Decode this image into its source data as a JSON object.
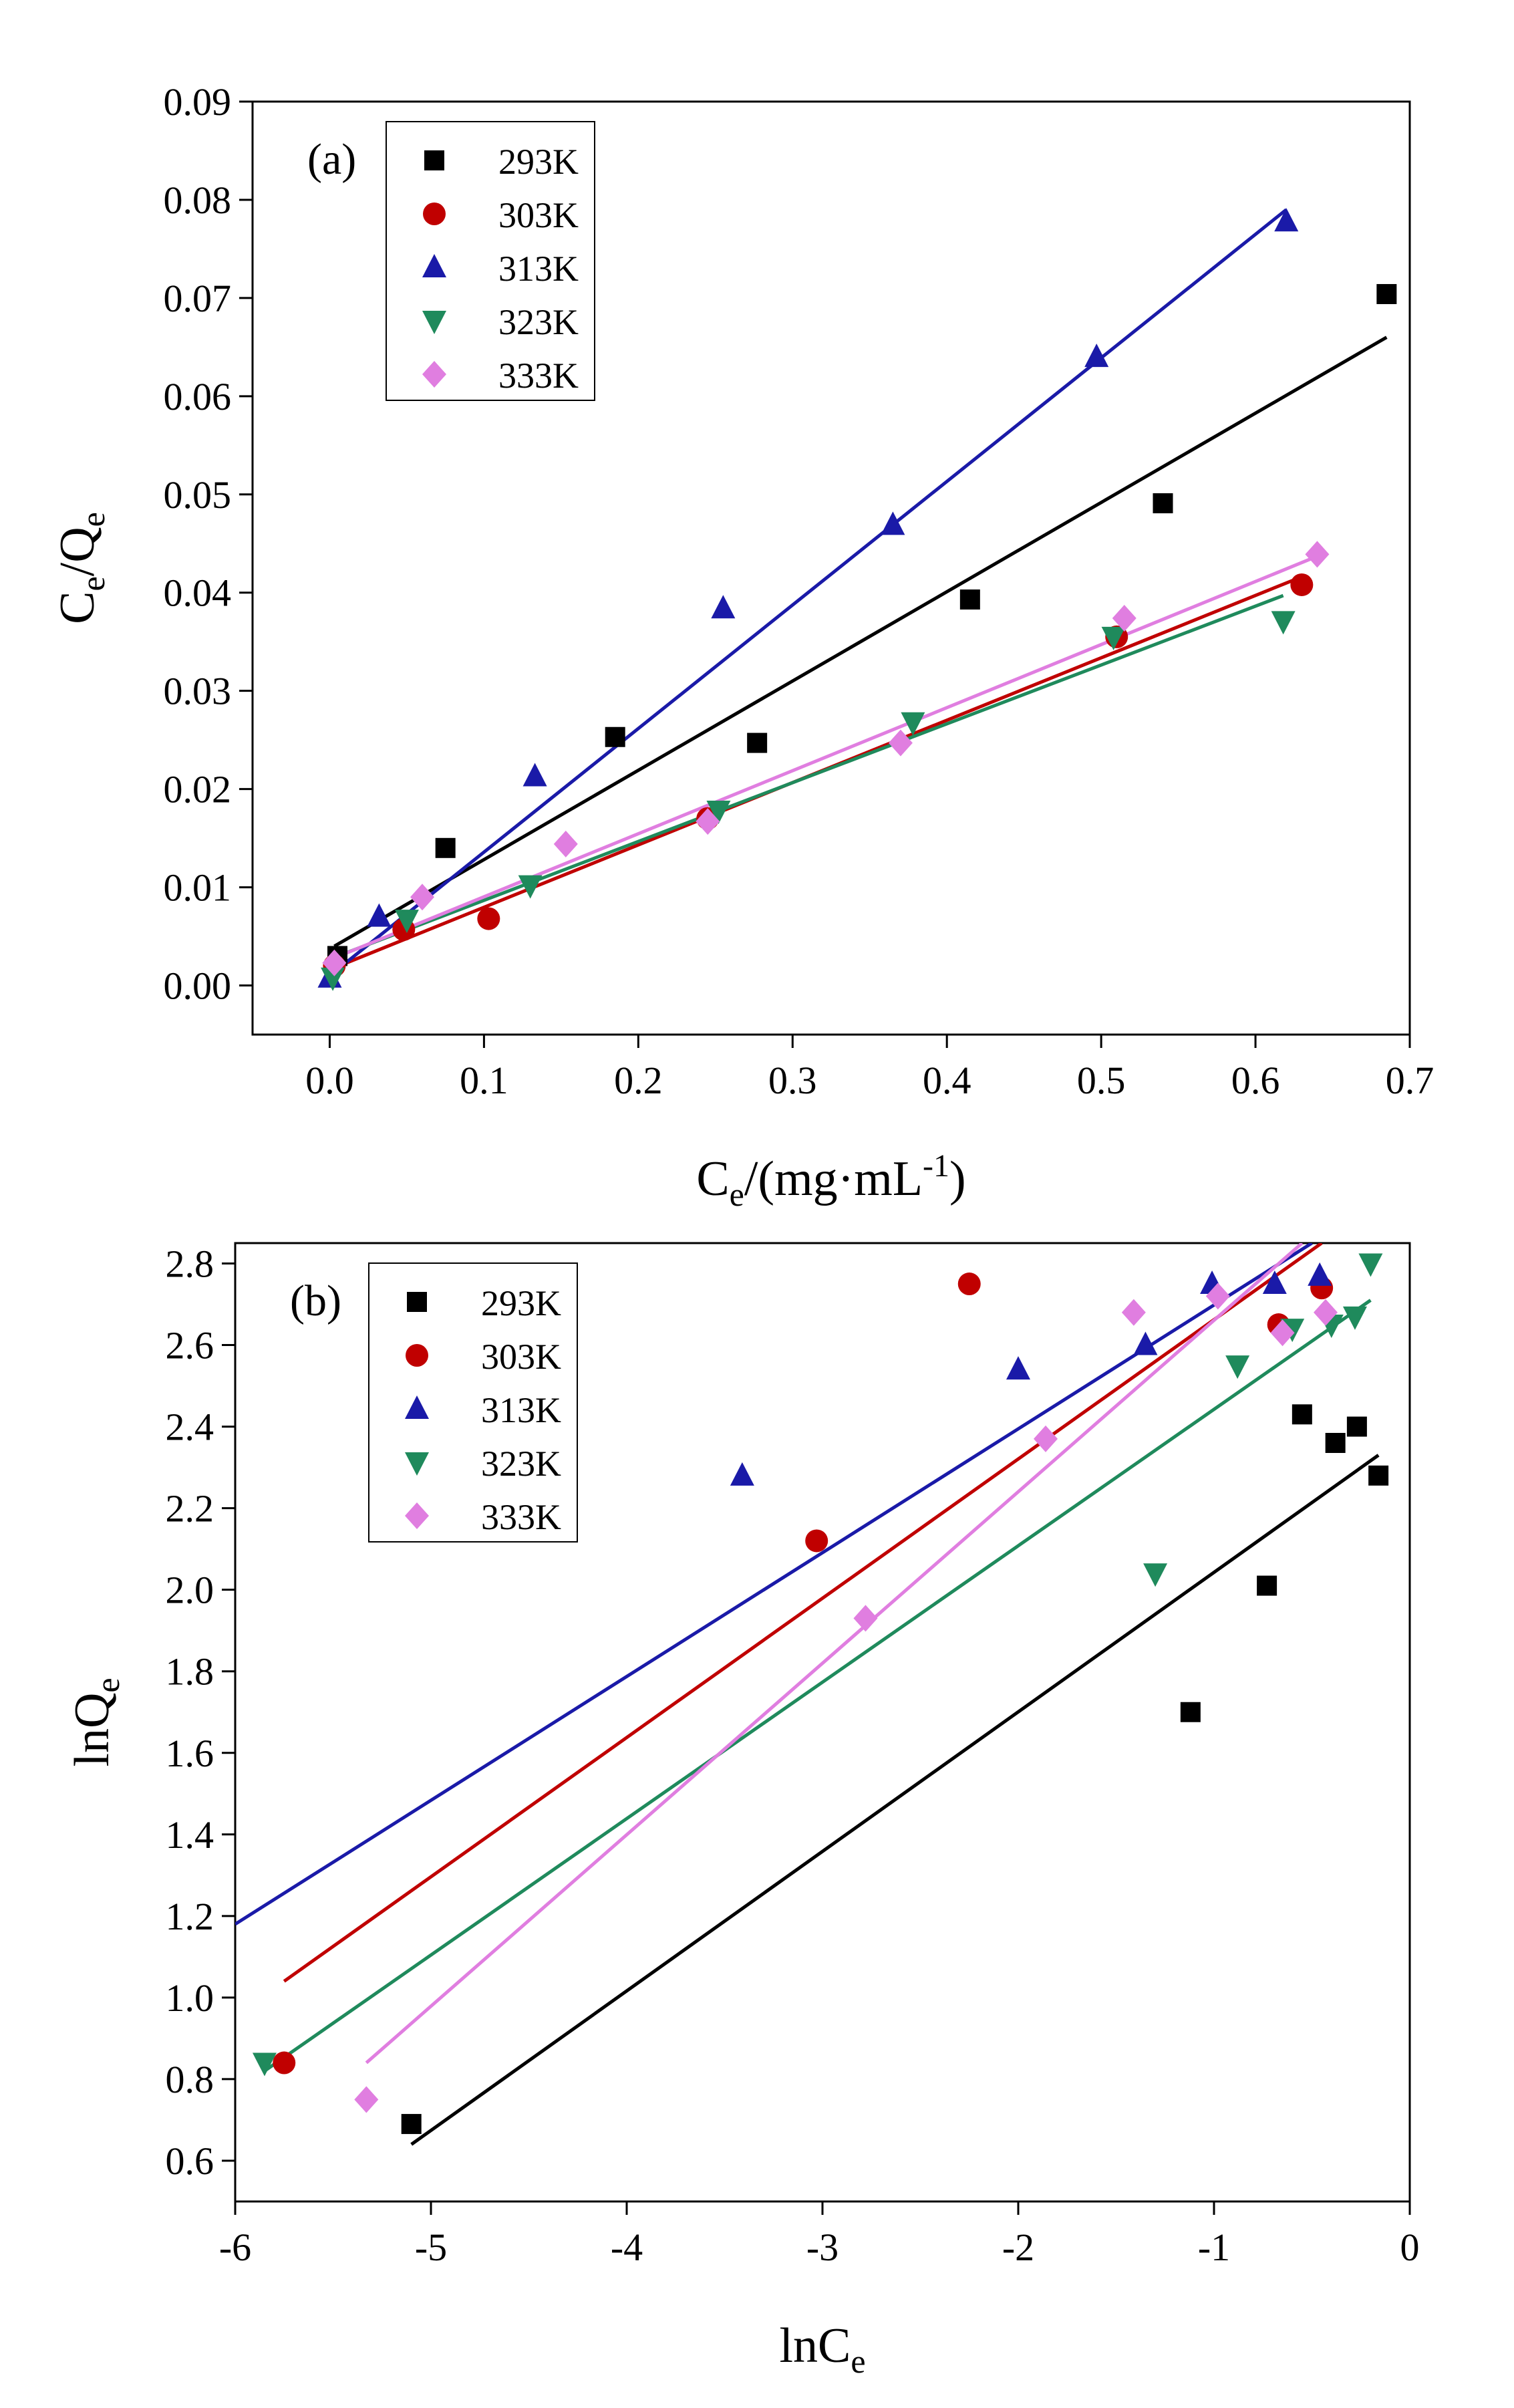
{
  "series_styles": [
    {
      "name": "293K",
      "color": "#000000",
      "marker": "square"
    },
    {
      "name": "303K",
      "color": "#c00000",
      "marker": "circle"
    },
    {
      "name": "313K",
      "color": "#1a1aa8",
      "marker": "triangle-up"
    },
    {
      "name": "323K",
      "color": "#1f8a5c",
      "marker": "triangle-down"
    },
    {
      "name": "333K",
      "color": "#e07ee0",
      "marker": "diamond"
    }
  ],
  "chart_data": [
    {
      "type": "scatter",
      "panel_label": "(a)",
      "xlabel": {
        "main": "C",
        "sub": "e",
        "rest": "/(mg·mL",
        "sup": "-1",
        "end": ")"
      },
      "ylabel": {
        "a": "C",
        "a_sub": "e",
        "b": "/Q",
        "b_sub": "e"
      },
      "xlim": [
        -0.05,
        0.7
      ],
      "ylim": [
        -0.005,
        0.09
      ],
      "xticks": [
        0.0,
        0.1,
        0.2,
        0.3,
        0.4,
        0.5,
        0.6,
        0.7
      ],
      "xtick_labels": [
        "0.0",
        "0.1",
        "0.2",
        "0.3",
        "0.4",
        "0.5",
        "0.6",
        "0.7"
      ],
      "yticks": [
        0.0,
        0.01,
        0.02,
        0.03,
        0.04,
        0.05,
        0.06,
        0.07,
        0.08,
        0.09
      ],
      "ytick_labels": [
        "0.00",
        "0.01",
        "0.02",
        "0.03",
        "0.04",
        "0.05",
        "0.06",
        "0.07",
        "0.08",
        "0.09"
      ],
      "grid": false,
      "legend_position": "top-left",
      "series": [
        {
          "name": "293K",
          "points": [
            [
              0.005,
              0.003
            ],
            [
              0.075,
              0.014
            ],
            [
              0.185,
              0.0253
            ],
            [
              0.277,
              0.0247
            ],
            [
              0.415,
              0.0393
            ],
            [
              0.54,
              0.0491
            ],
            [
              0.685,
              0.0704
            ]
          ],
          "fit": [
            [
              0.003,
              0.004
            ],
            [
              0.685,
              0.066
            ]
          ]
        },
        {
          "name": "303K",
          "points": [
            [
              0.003,
              0.002
            ],
            [
              0.048,
              0.0057
            ],
            [
              0.103,
              0.0068
            ],
            [
              0.245,
              0.017
            ],
            [
              0.51,
              0.0355
            ],
            [
              0.63,
              0.0408
            ]
          ],
          "fit": [
            [
              0.003,
              0.0018
            ],
            [
              0.625,
              0.0413
            ]
          ]
        },
        {
          "name": "313K",
          "points": [
            [
              0.0,
              0.0008
            ],
            [
              0.032,
              0.007
            ],
            [
              0.133,
              0.0213
            ],
            [
              0.255,
              0.0384
            ],
            [
              0.365,
              0.0469
            ],
            [
              0.497,
              0.064
            ],
            [
              0.62,
              0.0778
            ]
          ],
          "fit": [
            [
              0.0,
              0.001
            ],
            [
              0.62,
              0.079
            ]
          ]
        },
        {
          "name": "323K",
          "points": [
            [
              0.002,
              0.0008
            ],
            [
              0.05,
              0.0067
            ],
            [
              0.13,
              0.0102
            ],
            [
              0.252,
              0.0178
            ],
            [
              0.378,
              0.0268
            ],
            [
              0.508,
              0.0355
            ],
            [
              0.618,
              0.0371
            ]
          ],
          "fit": [
            [
              0.002,
              0.0028
            ],
            [
              0.618,
              0.0397
            ]
          ]
        },
        {
          "name": "333K",
          "points": [
            [
              0.003,
              0.0023
            ],
            [
              0.06,
              0.009
            ],
            [
              0.153,
              0.0144
            ],
            [
              0.245,
              0.0167
            ],
            [
              0.37,
              0.0247
            ],
            [
              0.515,
              0.0374
            ],
            [
              0.64,
              0.0439
            ]
          ],
          "fit": [
            [
              0.003,
              0.0028
            ],
            [
              0.64,
              0.0437
            ]
          ]
        }
      ]
    },
    {
      "type": "scatter",
      "panel_label": "(b)",
      "xlabel": {
        "main": "lnC",
        "sub": "e"
      },
      "ylabel": {
        "a": "lnQ",
        "a_sub": "e"
      },
      "xlim": [
        -6,
        0
      ],
      "ylim": [
        0.5,
        2.85
      ],
      "xticks": [
        -6,
        -5,
        -4,
        -3,
        -2,
        -1,
        0
      ],
      "xtick_labels": [
        "-6",
        "-5",
        "-4",
        "-3",
        "-2",
        "-1",
        "0"
      ],
      "yticks": [
        0.6,
        0.8,
        1.0,
        1.2,
        1.4,
        1.6,
        1.8,
        2.0,
        2.2,
        2.4,
        2.6,
        2.8
      ],
      "ytick_labels": [
        "0.6",
        "0.8",
        "1.0",
        "1.2",
        "1.4",
        "1.6",
        "1.8",
        "2.0",
        "2.2",
        "2.4",
        "2.6",
        "2.8"
      ],
      "grid": false,
      "legend_position": "top-left",
      "series": [
        {
          "name": "293K",
          "points": [
            [
              -5.1,
              0.69
            ],
            [
              -1.12,
              1.7
            ],
            [
              -0.73,
              2.01
            ],
            [
              -0.55,
              2.43
            ],
            [
              -0.38,
              2.36
            ],
            [
              -0.27,
              2.4
            ],
            [
              -0.16,
              2.28
            ]
          ],
          "fit": [
            [
              -5.1,
              0.64
            ],
            [
              -0.16,
              2.33
            ]
          ]
        },
        {
          "name": "303K",
          "points": [
            [
              -5.75,
              0.84
            ],
            [
              -3.03,
              2.12
            ],
            [
              -2.25,
              2.75
            ],
            [
              -0.67,
              2.65
            ],
            [
              -0.45,
              2.74
            ]
          ],
          "fit": [
            [
              -5.75,
              1.04
            ],
            [
              -0.45,
              2.85
            ]
          ]
        },
        {
          "name": "313K",
          "points": [
            [
              -3.41,
              2.28
            ],
            [
              -2.0,
              2.54
            ],
            [
              -1.35,
              2.6
            ],
            [
              -1.01,
              2.75
            ],
            [
              -0.69,
              2.75
            ],
            [
              -0.46,
              2.77
            ]
          ],
          "fit": [
            [
              -6.0,
              1.18
            ],
            [
              -0.5,
              2.85
            ]
          ]
        },
        {
          "name": "323K",
          "points": [
            [
              -5.85,
              0.84
            ],
            [
              -1.3,
              2.04
            ],
            [
              -0.88,
              2.55
            ],
            [
              -0.6,
              2.64
            ],
            [
              -0.4,
              2.65
            ],
            [
              -0.28,
              2.67
            ],
            [
              -0.2,
              2.8
            ]
          ],
          "fit": [
            [
              -5.85,
              0.82
            ],
            [
              -0.2,
              2.71
            ]
          ]
        },
        {
          "name": "333K",
          "points": [
            [
              -5.33,
              0.75
            ],
            [
              -2.78,
              1.93
            ],
            [
              -1.86,
              2.37
            ],
            [
              -1.41,
              2.68
            ],
            [
              -0.98,
              2.72
            ],
            [
              -0.65,
              2.63
            ],
            [
              -0.43,
              2.68
            ]
          ],
          "fit": [
            [
              -5.33,
              0.84
            ],
            [
              -0.55,
              2.85
            ]
          ]
        }
      ]
    }
  ]
}
